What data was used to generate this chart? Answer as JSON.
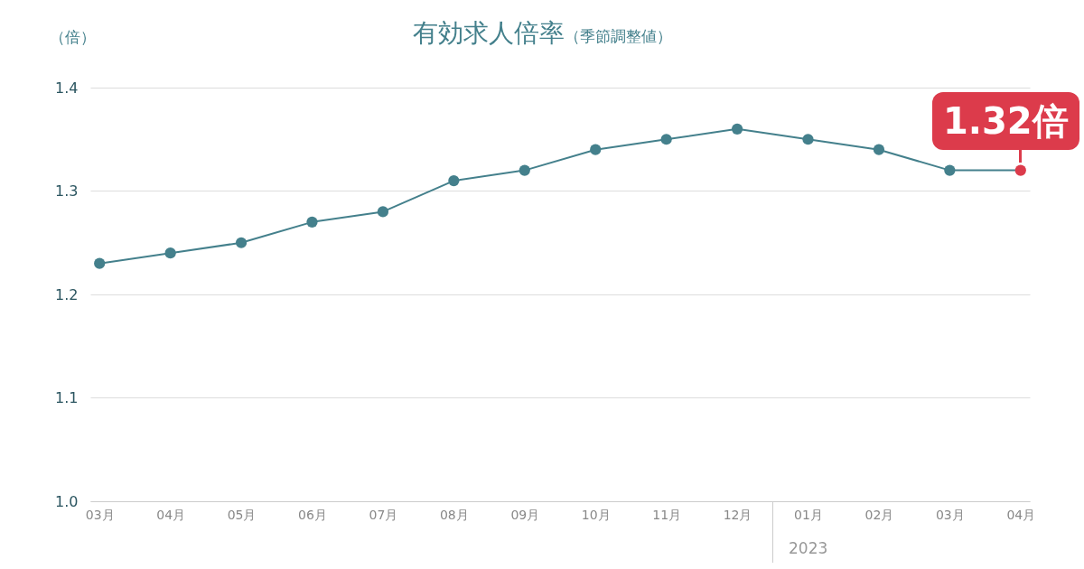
{
  "chart_data": {
    "type": "line",
    "title": "有効求人倍率",
    "subtitle": "（季節調整値）",
    "ylabel": "（倍）",
    "categories": [
      "03月",
      "04月",
      "05月",
      "06月",
      "07月",
      "08月",
      "09月",
      "10月",
      "11月",
      "12月",
      "01月",
      "02月",
      "03月",
      "04月"
    ],
    "series": [
      {
        "color": "#44808c",
        "colors": [
          "#44808c",
          "#44808c",
          "#44808c",
          "#44808c",
          "#44808c",
          "#44808c",
          "#44808c",
          "#44808c",
          "#44808c",
          "#44808c",
          "#44808c",
          "#44808c",
          "#44808c",
          "#dc3b4b"
        ],
        "values": [
          1.23,
          1.24,
          1.25,
          1.27,
          1.28,
          1.31,
          1.32,
          1.34,
          1.35,
          1.36,
          1.35,
          1.34,
          1.32,
          1.32
        ]
      }
    ],
    "ylim": [
      1.0,
      1.4
    ],
    "yticks": [
      {
        "value": 1.0,
        "label": "1.0"
      },
      1.1,
      1.2,
      1.3,
      1.4
    ],
    "grid": "y",
    "marker": "circle",
    "line_style": "solid",
    "annotations": [
      "1.32倍",
      "2023"
    ]
  }
}
